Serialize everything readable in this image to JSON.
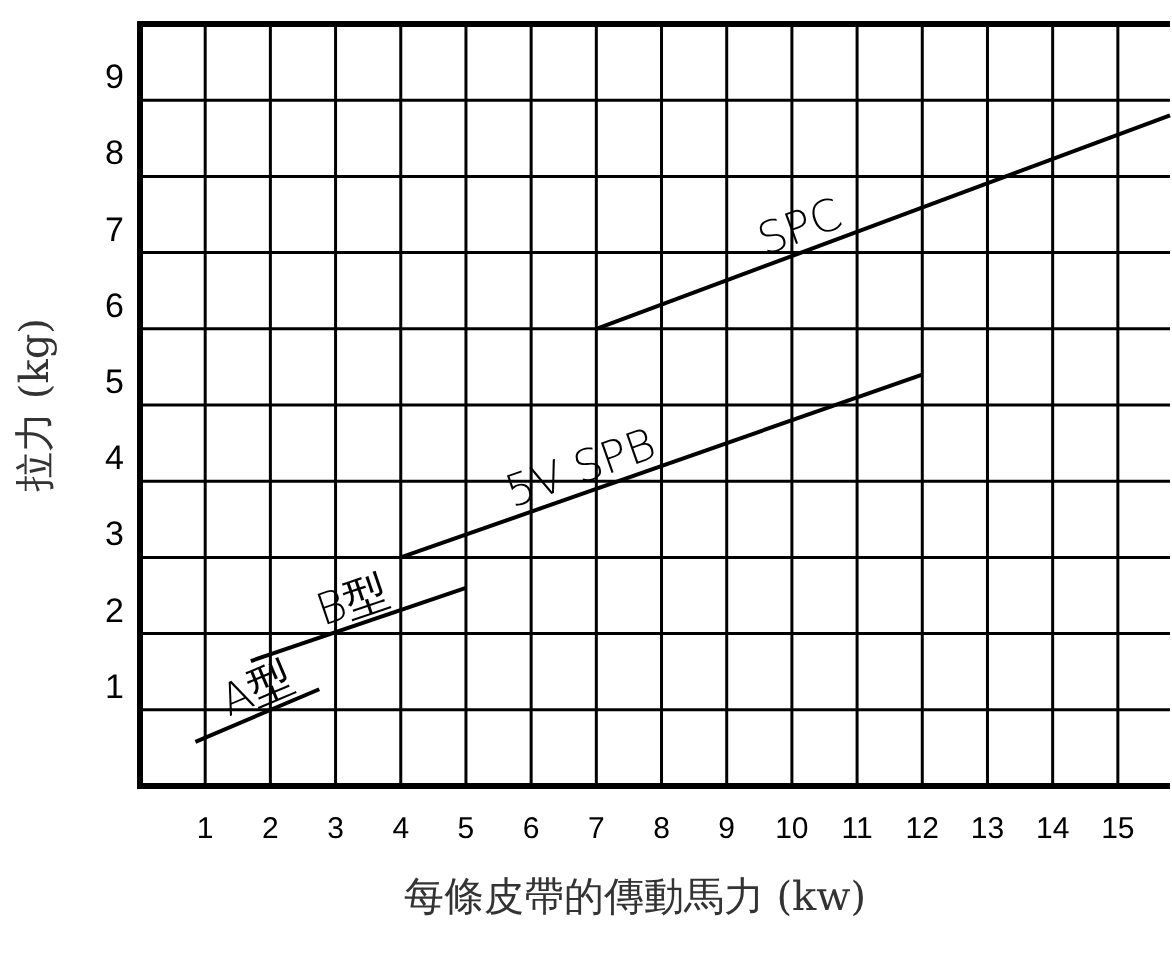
{
  "chart_data": {
    "type": "line",
    "xlabel": "每條皮帶的傳動馬力 (kw)",
    "ylabel": "拉力 (kg)",
    "xlim": [
      0,
      15.8
    ],
    "ylim": [
      0,
      10
    ],
    "xticks": [
      1,
      2,
      3,
      4,
      5,
      6,
      7,
      8,
      9,
      10,
      11,
      12,
      13,
      14,
      15
    ],
    "yticks": [
      1,
      2,
      3,
      4,
      5,
      6,
      7,
      8,
      9
    ],
    "grid": true,
    "marker": "none",
    "line_style": "solid",
    "series": [
      {
        "name": "A型",
        "color": "#000000",
        "x": [
          0.85,
          2.75
        ],
        "values": [
          0.58,
          1.27
        ]
      },
      {
        "name": "B型",
        "color": "#000000",
        "x": [
          1.7,
          5
        ],
        "values": [
          1.64,
          2.6
        ]
      },
      {
        "name": "5V SPB",
        "color": "#000000",
        "x": [
          4,
          12
        ],
        "values": [
          3,
          5.4
        ]
      },
      {
        "name": "SPC",
        "color": "#000000",
        "x": [
          7,
          15.8
        ],
        "values": [
          6,
          8.8
        ]
      }
    ]
  }
}
